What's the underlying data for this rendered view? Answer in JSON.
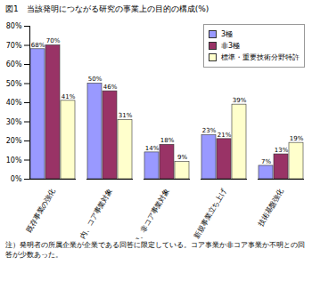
{
  "chart_data": {
    "type": "bar",
    "title": "図1　当該発明につながる研究の事業上の目的の構成(%)",
    "categories": [
      "既存事業の強化",
      "内、コア事業対象",
      "内、非コア事業対象",
      "新規事業立ち上げ",
      "技術基盤強化"
    ],
    "series": [
      {
        "name": "3極",
        "color": "#9999ff",
        "values": [
          68,
          50,
          14,
          23,
          7
        ],
        "value_labels": [
          "68%",
          "50%",
          "14%",
          "23%",
          "7%"
        ]
      },
      {
        "name": "非3極",
        "color": "#993366",
        "values": [
          70,
          46,
          18,
          21,
          13
        ],
        "value_labels": [
          "70%",
          "46%",
          "18%",
          "21%",
          "13%"
        ]
      },
      {
        "name": "標準・重要技術分野特許",
        "color": "#ffffcc",
        "values": [
          41,
          31,
          9,
          39,
          19
        ],
        "value_labels": [
          "41%",
          "31%",
          "9%",
          "39%",
          "19%"
        ]
      }
    ],
    "ylim": [
      0,
      80
    ],
    "yticks": [
      {
        "value": 0,
        "label": "0%"
      },
      {
        "value": 10,
        "label": "10%"
      },
      {
        "value": 20,
        "label": "20%"
      },
      {
        "value": 30,
        "label": "30%"
      },
      {
        "value": 40,
        "label": "40%"
      },
      {
        "value": 50,
        "label": "50%"
      },
      {
        "value": 60,
        "label": "60%"
      },
      {
        "value": 70,
        "label": "70%"
      },
      {
        "value": 80,
        "label": "80%"
      }
    ],
    "grid": false,
    "legend": "top-right",
    "data_labels": true,
    "note": "注）発明者の所属企業が企業である回答に限定している。コア事業か非コア事業か不明との回答が少数あった。"
  }
}
